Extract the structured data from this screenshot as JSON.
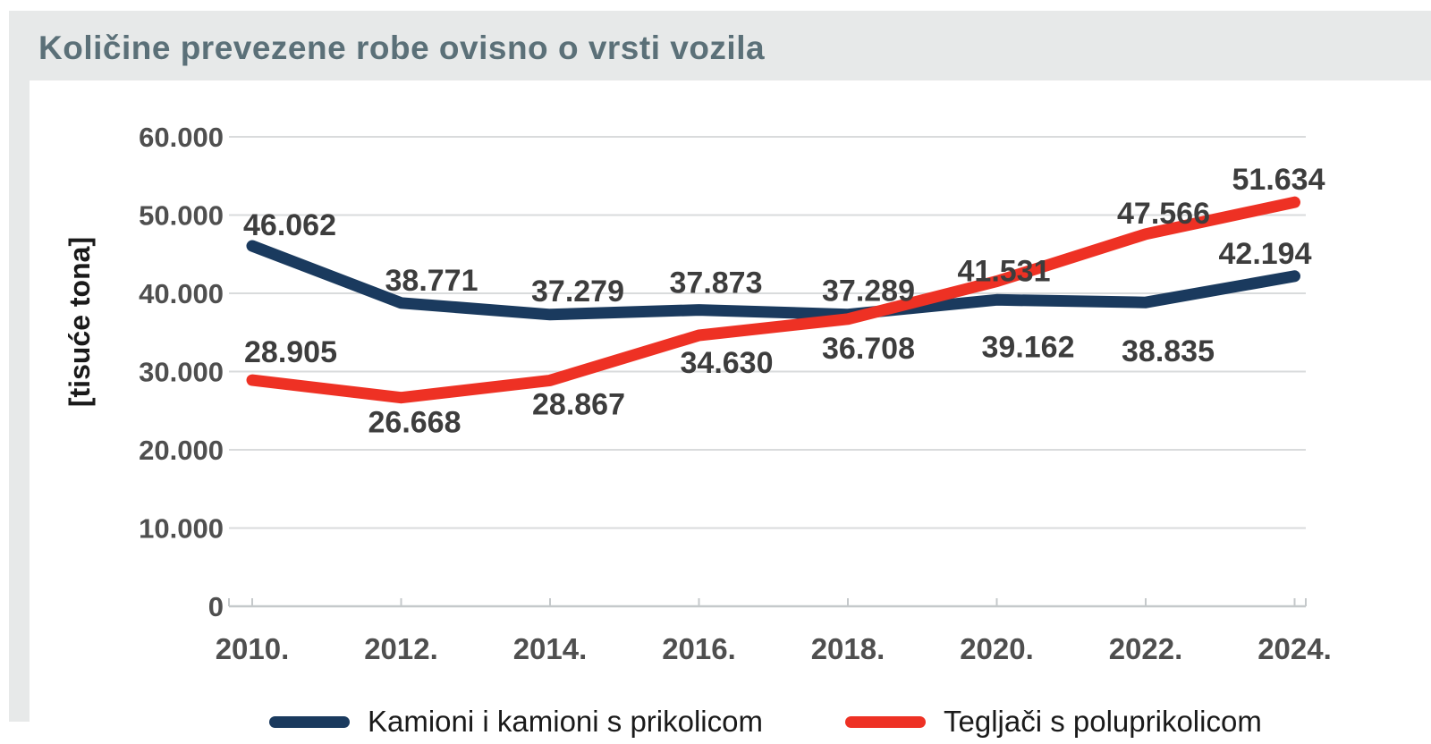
{
  "header": {
    "title": "Količine prevezene robe ovisno o vrsti vozila"
  },
  "chart_data": {
    "type": "line",
    "title": "Količine prevezene robe ovisno o vrsti vozila",
    "categories": [
      "2010.",
      "2012.",
      "2014.",
      "2016.",
      "2018.",
      "2020.",
      "2022.",
      "2024."
    ],
    "xlabel": "",
    "ylabel": "[tisuće tona]",
    "ylim": [
      0,
      60000
    ],
    "ytick_interval": 10000,
    "ytick_labels": [
      "0",
      "10.000",
      "20.000",
      "30.000",
      "40.000",
      "50.000",
      "60.000"
    ],
    "grid": true,
    "legend_position": "bottom",
    "series": [
      {
        "name": "Kamioni i kamioni s prikolicom",
        "color": "#1a3a5e",
        "values": [
          46062,
          38771,
          37279,
          37873,
          37289,
          39162,
          38835,
          42194
        ],
        "point_labels": [
          "46.062",
          "38.771",
          "37.279",
          "37.873",
          "37.289",
          "39.162",
          "38.835",
          "42.194"
        ],
        "label_offsets": [
          [
            42,
            -24
          ],
          [
            34,
            -26
          ],
          [
            31,
            -27
          ],
          [
            19,
            -31
          ],
          [
            23,
            -27
          ],
          [
            35,
            52
          ],
          [
            25,
            54
          ],
          [
            -33,
            -26
          ]
        ]
      },
      {
        "name": "Tegljači s poluprikolicom",
        "color": "#ee3124",
        "values": [
          28905,
          26668,
          28867,
          34630,
          36708,
          41531,
          47566,
          51634
        ],
        "point_labels": [
          "28.905",
          "26.668",
          "28.867",
          "34.630",
          "36.708",
          "41.531",
          "47.566",
          "51.634"
        ],
        "label_offsets": [
          [
            43,
            -32
          ],
          [
            15,
            27
          ],
          [
            32,
            26
          ],
          [
            31,
            30
          ],
          [
            23,
            32
          ],
          [
            8,
            -12
          ],
          [
            20,
            -24
          ],
          [
            -18,
            -26
          ]
        ]
      }
    ]
  },
  "colors": {
    "background": "#e7e9e9",
    "panel": "#ffffff",
    "grid": "#d9dbdc",
    "axis": "#c5c9cb",
    "tick_label": "#4f4f4f",
    "data_label": "#3d3d3d",
    "title": "#5b7078",
    "axis_title": "#1a1a1a",
    "legend_text": "#1a1a1a"
  }
}
